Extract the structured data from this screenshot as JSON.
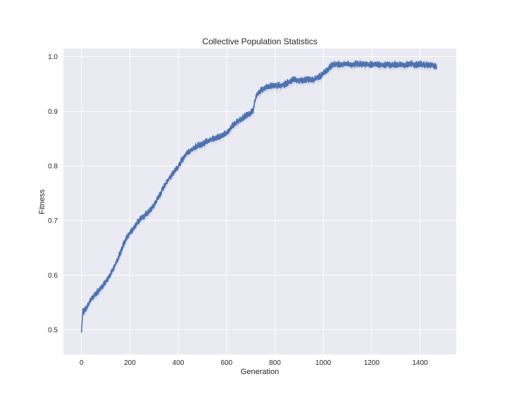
{
  "chart_data": {
    "type": "line",
    "title": "Collective Population Statistics",
    "xlabel": "Generation",
    "ylabel": "Fitness",
    "xlim": [
      -75,
      1550
    ],
    "ylim": [
      0.455,
      1.015
    ],
    "x_ticks": [
      0,
      200,
      400,
      600,
      800,
      1000,
      1200,
      1400
    ],
    "y_ticks": [
      0.5,
      0.6,
      0.7,
      0.8,
      0.9,
      1.0
    ],
    "y_tick_labels": [
      "0.5",
      "0.6",
      "0.7",
      "0.8",
      "0.9",
      "1.0"
    ],
    "grid": true,
    "legend": "none",
    "series": [
      {
        "color": "#4c72b0",
        "band_color": "#4c72b0",
        "x": [
          0,
          5,
          10,
          20,
          30,
          40,
          50,
          60,
          70,
          80,
          90,
          100,
          110,
          120,
          130,
          140,
          150,
          160,
          170,
          180,
          190,
          200,
          210,
          220,
          230,
          240,
          250,
          260,
          270,
          280,
          290,
          300,
          310,
          320,
          330,
          340,
          350,
          360,
          370,
          380,
          390,
          400,
          410,
          420,
          430,
          440,
          450,
          460,
          470,
          480,
          490,
          500,
          510,
          520,
          530,
          540,
          550,
          560,
          570,
          580,
          590,
          600,
          610,
          620,
          630,
          640,
          650,
          660,
          670,
          680,
          690,
          700,
          710,
          720,
          730,
          740,
          750,
          760,
          770,
          780,
          790,
          800,
          810,
          820,
          830,
          840,
          850,
          860,
          870,
          880,
          890,
          900,
          910,
          920,
          930,
          940,
          950,
          960,
          970,
          980,
          990,
          1000,
          1010,
          1020,
          1030,
          1040,
          1050,
          1060,
          1070,
          1080,
          1090,
          1100,
          1110,
          1120,
          1130,
          1140,
          1150,
          1160,
          1170,
          1180,
          1190,
          1200,
          1210,
          1220,
          1230,
          1240,
          1250,
          1260,
          1270,
          1280,
          1290,
          1300,
          1310,
          1320,
          1330,
          1340,
          1350,
          1360,
          1370,
          1380,
          1390,
          1400,
          1410,
          1420,
          1430,
          1440,
          1450,
          1460,
          1470
        ],
        "y": [
          0.495,
          0.535,
          0.532,
          0.54,
          0.548,
          0.558,
          0.562,
          0.567,
          0.571,
          0.576,
          0.581,
          0.588,
          0.595,
          0.602,
          0.611,
          0.62,
          0.63,
          0.641,
          0.652,
          0.663,
          0.672,
          0.678,
          0.683,
          0.689,
          0.696,
          0.701,
          0.705,
          0.709,
          0.713,
          0.718,
          0.723,
          0.729,
          0.737,
          0.745,
          0.753,
          0.762,
          0.769,
          0.776,
          0.782,
          0.788,
          0.793,
          0.799,
          0.807,
          0.814,
          0.82,
          0.825,
          0.829,
          0.832,
          0.835,
          0.837,
          0.839,
          0.841,
          0.843,
          0.845,
          0.847,
          0.849,
          0.851,
          0.853,
          0.855,
          0.857,
          0.859,
          0.861,
          0.865,
          0.871,
          0.876,
          0.88,
          0.883,
          0.886,
          0.889,
          0.892,
          0.895,
          0.898,
          0.9,
          0.926,
          0.933,
          0.938,
          0.941,
          0.944,
          0.946,
          0.947,
          0.948,
          0.948,
          0.947,
          0.948,
          0.948,
          0.949,
          0.952,
          0.955,
          0.957,
          0.958,
          0.958,
          0.957,
          0.958,
          0.958,
          0.958,
          0.959,
          0.959,
          0.958,
          0.96,
          0.963,
          0.966,
          0.969,
          0.973,
          0.977,
          0.982,
          0.986,
          0.987,
          0.987,
          0.986,
          0.987,
          0.987,
          0.986,
          0.987,
          0.986,
          0.987,
          0.986,
          0.987,
          0.986,
          0.987,
          0.986,
          0.987,
          0.986,
          0.987,
          0.986,
          0.985,
          0.986,
          0.985,
          0.986,
          0.986,
          0.985,
          0.986,
          0.986,
          0.985,
          0.986,
          0.986,
          0.985,
          0.986,
          0.987,
          0.987,
          0.986,
          0.986,
          0.987,
          0.986,
          0.985,
          0.985,
          0.986,
          0.985,
          0.983,
          0.981
        ]
      }
    ]
  }
}
